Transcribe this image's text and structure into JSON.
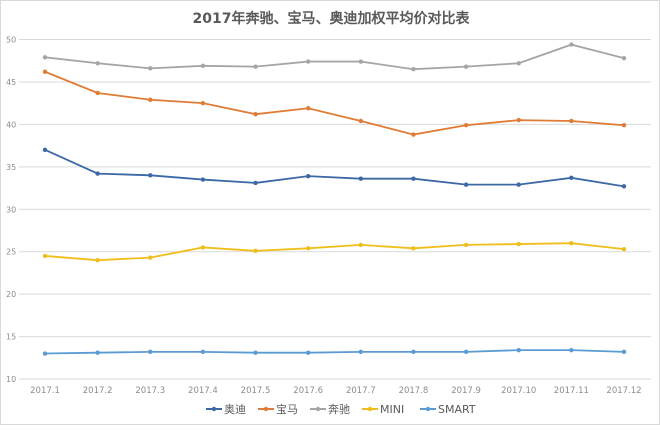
{
  "chart_data": {
    "type": "line",
    "title": "2017年奔驰、宝马、奥迪加权平均价对比表",
    "xlabel": "",
    "ylabel": "",
    "categories": [
      "2017.1",
      "2017.2",
      "2017.3",
      "2017.4",
      "2017.5",
      "2017.6",
      "2017.7",
      "2017.8",
      "2017.9",
      "2017.10",
      "2017.11",
      "2017.12"
    ],
    "ylim": [
      10,
      50
    ],
    "yticks": [
      10,
      15,
      20,
      25,
      30,
      35,
      40,
      45,
      50
    ],
    "grid": true,
    "legend_position": "bottom",
    "series": [
      {
        "name": "奥迪",
        "color": "#3d68a6",
        "values": [
          37.0,
          34.2,
          34.0,
          33.5,
          33.1,
          33.9,
          33.6,
          33.6,
          32.9,
          32.9,
          33.7,
          32.7
        ]
      },
      {
        "name": "宝马",
        "color": "#e07b35",
        "values": [
          46.2,
          43.7,
          42.9,
          42.5,
          41.2,
          41.9,
          40.4,
          38.8,
          39.9,
          40.5,
          40.4,
          39.9
        ]
      },
      {
        "name": "奔驰",
        "color": "#a5a5a5",
        "values": [
          47.9,
          47.2,
          46.6,
          46.9,
          46.8,
          47.4,
          47.4,
          46.5,
          46.8,
          47.2,
          49.4,
          47.8
        ]
      },
      {
        "name": "MINI",
        "color": "#f0be1a",
        "values": [
          24.5,
          24.0,
          24.3,
          25.5,
          25.1,
          25.4,
          25.8,
          25.4,
          25.8,
          25.9,
          26.0,
          25.3
        ]
      },
      {
        "name": "SMART",
        "color": "#5b9bd5",
        "values": [
          13.0,
          13.1,
          13.2,
          13.2,
          13.1,
          13.1,
          13.2,
          13.2,
          13.2,
          13.4,
          13.4,
          13.2
        ]
      }
    ]
  }
}
